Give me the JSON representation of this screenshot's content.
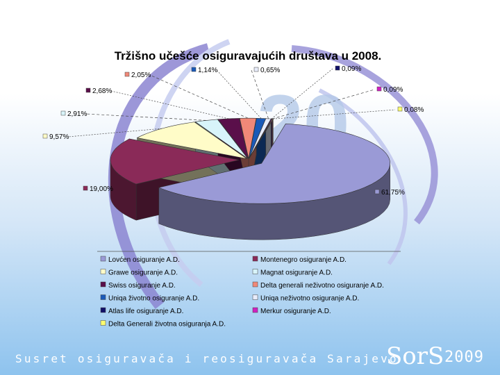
{
  "chart_data": {
    "type": "pie",
    "title": "Tržišno učešće osiguravajućih društava u 2008.",
    "slices": [
      {
        "name": "Lovćen osiguranje A.D.",
        "value": 61.75,
        "label": "61,75%",
        "color": "#9a9ad6"
      },
      {
        "name": "Montenegro osiguranje A.D.",
        "value": 19.0,
        "label": "19,00%",
        "color": "#8a2a58"
      },
      {
        "name": "Grawe osiguranje A.D.",
        "value": 9.57,
        "label": "9,57%",
        "color": "#fffcc8"
      },
      {
        "name": "Magnat osiguranje A.D.",
        "value": 2.91,
        "label": "2,91%",
        "color": "#d8f4fa"
      },
      {
        "name": "Swiss osiguranje A.D.",
        "value": 2.68,
        "label": "2,68%",
        "color": "#5a0f4a"
      },
      {
        "name": "Delta generali neživotno osiguranje A.D.",
        "value": 2.05,
        "label": "2,05%",
        "color": "#f08878"
      },
      {
        "name": "Uniqa životno osiguranje A.D.",
        "value": 1.14,
        "label": "1,14%",
        "color": "#1a5ab8"
      },
      {
        "name": "Uniqa neživotno osiguranje A.D.",
        "value": 0.65,
        "label": "0,65%",
        "color": "#e8ecfa"
      },
      {
        "name": "Atlas life osiguranje A.D.",
        "value": 0.09,
        "label": "0,09%",
        "color": "#10106a"
      },
      {
        "name": "Merkur osiguranje A.D.",
        "value": 0.09,
        "label": "0,09%",
        "color": "#d020c0"
      },
      {
        "name": "Delta Generali životna osiguranja A.D.",
        "value": 0.08,
        "label": "0,08%",
        "color": "#fbfb70"
      }
    ],
    "legend_position": "bottom"
  },
  "footer": {
    "text": "Susret osiguravača i reosiguravača Sarajevo",
    "logo": "SorS",
    "year": "2009"
  },
  "watermark": "20"
}
